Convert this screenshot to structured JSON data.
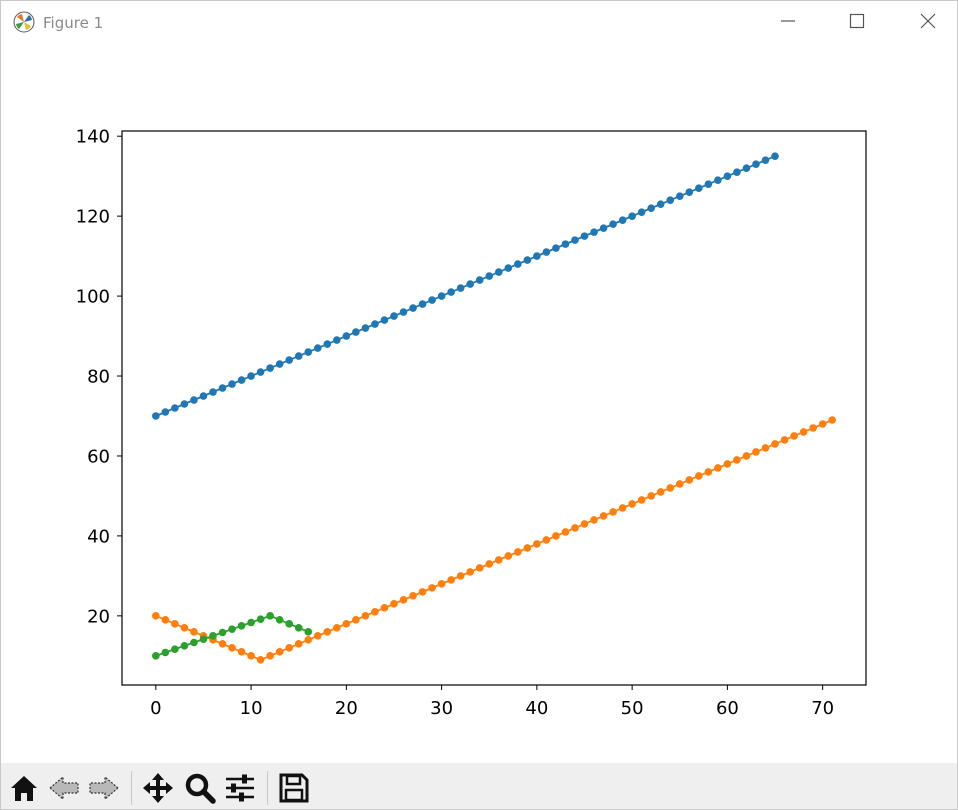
{
  "window": {
    "title": "Figure 1",
    "controls": [
      "minimize",
      "maximize",
      "close"
    ]
  },
  "toolbar": {
    "tools": [
      {
        "name": "home",
        "icon": "home-icon"
      },
      {
        "name": "back",
        "icon": "back-arrow-icon"
      },
      {
        "name": "forward",
        "icon": "forward-arrow-icon"
      },
      {
        "name": "pan",
        "icon": "move-icon"
      },
      {
        "name": "zoom",
        "icon": "magnifier-icon"
      },
      {
        "name": "configure-subplots",
        "icon": "sliders-icon"
      },
      {
        "name": "save",
        "icon": "floppy-disk-icon"
      }
    ]
  },
  "chart_data": {
    "type": "line",
    "title": "",
    "xlabel": "",
    "ylabel": "",
    "xlim": [
      -3.55,
      74.55
    ],
    "ylim": [
      2.7,
      141.3
    ],
    "xticks": [
      0,
      10,
      20,
      30,
      40,
      50,
      60,
      70
    ],
    "yticks": [
      20,
      40,
      60,
      80,
      100,
      120,
      140
    ],
    "grid": false,
    "legend": "none",
    "series": [
      {
        "color": "#1f77b4",
        "marker": "circle",
        "points": [
          [
            0,
            70
          ],
          [
            65,
            135
          ]
        ],
        "step": 1,
        "slope": 1
      },
      {
        "color": "#ff7f0e",
        "marker": "circle",
        "points": [
          [
            0,
            20
          ],
          [
            11,
            9
          ],
          [
            71,
            69
          ]
        ],
        "step": 1
      },
      {
        "color": "#2ca02c",
        "marker": "circle",
        "points": [
          [
            0,
            10
          ],
          [
            12,
            20
          ],
          [
            16,
            16
          ]
        ],
        "step": 1
      }
    ]
  }
}
